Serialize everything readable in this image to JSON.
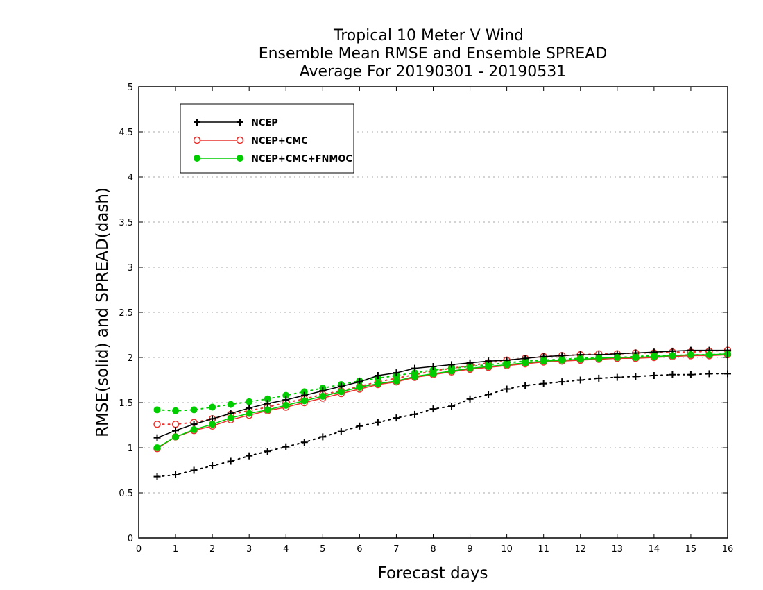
{
  "chart_data": {
    "type": "line",
    "title": "Tropical 10 Meter V Wind",
    "subtitle": "Ensemble Mean RMSE and Ensemble SPREAD",
    "subtitle2": "Average For 20190301 - 20190531",
    "xlabel": "Forecast days",
    "ylabel": "RMSE(solid) and SPREAD(dash)",
    "xlim": [
      0,
      16
    ],
    "ylim": [
      0,
      5
    ],
    "xticks": [
      "0",
      "1",
      "2",
      "3",
      "4",
      "5",
      "6",
      "7",
      "8",
      "9",
      "10",
      "11",
      "12",
      "13",
      "14",
      "15",
      "16"
    ],
    "yticks": [
      "0",
      "0.5",
      "1",
      "1.5",
      "2",
      "2.5",
      "3",
      "3.5",
      "4",
      "4.5",
      "5"
    ],
    "grid": true,
    "legend_position": "top-left",
    "x": [
      0.5,
      1,
      1.5,
      2,
      2.5,
      3,
      3.5,
      4,
      4.5,
      5,
      5.5,
      6,
      6.5,
      7,
      7.5,
      8,
      8.5,
      9,
      9.5,
      10,
      10.5,
      11,
      11.5,
      12,
      12.5,
      13,
      13.5,
      14,
      14.5,
      15,
      15.5,
      16
    ],
    "series": [
      {
        "name": "NCEP",
        "color": "#000000",
        "marker": "plus",
        "rmse": [
          1.11,
          1.19,
          1.26,
          1.32,
          1.38,
          1.44,
          1.49,
          1.53,
          1.58,
          1.63,
          1.68,
          1.73,
          1.8,
          1.83,
          1.88,
          1.9,
          1.92,
          1.94,
          1.96,
          1.97,
          1.99,
          2.01,
          2.02,
          2.03,
          2.03,
          2.04,
          2.05,
          2.06,
          2.07,
          2.08,
          2.08,
          2.08
        ],
        "spread": [
          0.68,
          0.7,
          0.75,
          0.8,
          0.85,
          0.91,
          0.96,
          1.01,
          1.06,
          1.12,
          1.18,
          1.24,
          1.28,
          1.33,
          1.37,
          1.43,
          1.46,
          1.54,
          1.59,
          1.65,
          1.69,
          1.71,
          1.73,
          1.75,
          1.77,
          1.78,
          1.79,
          1.8,
          1.81,
          1.81,
          1.82,
          1.82
        ]
      },
      {
        "name": "NCEP+CMC",
        "color": "#e8312d",
        "marker": "open-circle",
        "rmse": [
          0.99,
          1.12,
          1.19,
          1.24,
          1.31,
          1.36,
          1.41,
          1.45,
          1.5,
          1.55,
          1.6,
          1.65,
          1.7,
          1.73,
          1.78,
          1.81,
          1.84,
          1.87,
          1.89,
          1.91,
          1.93,
          1.95,
          1.96,
          1.97,
          1.98,
          1.99,
          1.99,
          2.0,
          2.01,
          2.02,
          2.02,
          2.03
        ],
        "spread": [
          1.26,
          1.26,
          1.28,
          1.32,
          1.37,
          1.41,
          1.45,
          1.5,
          1.54,
          1.59,
          1.63,
          1.68,
          1.73,
          1.77,
          1.81,
          1.85,
          1.88,
          1.91,
          1.94,
          1.97,
          1.99,
          2.01,
          2.02,
          2.03,
          2.04,
          2.04,
          2.05,
          2.05,
          2.06,
          2.06,
          2.07,
          2.08
        ]
      },
      {
        "name": "NCEP+CMC+FNMOC",
        "color": "#00cc00",
        "marker": "filled-circle",
        "rmse": [
          1.0,
          1.12,
          1.2,
          1.26,
          1.33,
          1.38,
          1.42,
          1.47,
          1.52,
          1.57,
          1.62,
          1.67,
          1.71,
          1.74,
          1.79,
          1.82,
          1.85,
          1.88,
          1.9,
          1.92,
          1.94,
          1.96,
          1.97,
          1.98,
          1.99,
          2.0,
          2.0,
          2.01,
          2.02,
          2.03,
          2.03,
          2.04
        ],
        "spread": [
          1.42,
          1.41,
          1.42,
          1.45,
          1.48,
          1.51,
          1.54,
          1.58,
          1.62,
          1.66,
          1.7,
          1.74,
          1.77,
          1.8,
          1.83,
          1.86,
          1.88,
          1.9,
          1.92,
          1.94,
          1.96,
          1.97,
          1.98,
          1.99,
          2.0,
          2.0,
          2.01,
          2.02,
          2.02,
          2.03,
          2.03,
          2.04
        ]
      }
    ]
  }
}
